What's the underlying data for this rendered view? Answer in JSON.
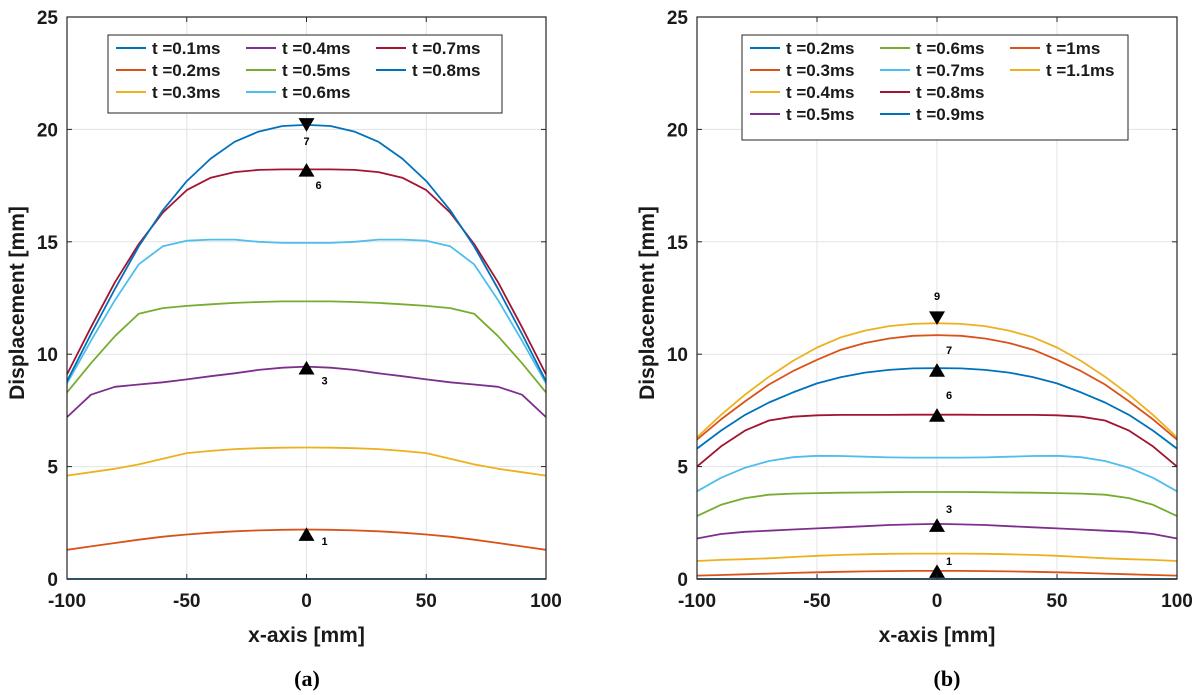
{
  "chart_data": [
    {
      "type": "line",
      "caption": "(a)",
      "xlabel": "x-axis [mm]",
      "ylabel": "Displacement [mm]",
      "xlim": [
        -100,
        100
      ],
      "ylim": [
        0,
        25
      ],
      "xticks": [
        "-100",
        "-50",
        "0",
        "50",
        "100"
      ],
      "yticks": [
        "0",
        "5",
        "10",
        "15",
        "20",
        "25"
      ],
      "grid": true,
      "legend_position": "top",
      "x": [
        -100,
        -90,
        -80,
        -70,
        -60,
        -50,
        -40,
        -30,
        -20,
        -10,
        0,
        10,
        20,
        30,
        40,
        50,
        60,
        70,
        80,
        90,
        100
      ],
      "series": [
        {
          "name": "t =0.1ms",
          "color": "#0072BD",
          "values": [
            0,
            0,
            0,
            0,
            0,
            0,
            0,
            0,
            0,
            0,
            0,
            0,
            0,
            0,
            0,
            0,
            0,
            0,
            0,
            0,
            0
          ]
        },
        {
          "name": "t =0.2ms",
          "color": "#D95319",
          "values": [
            1.3,
            1.45,
            1.6,
            1.75,
            1.88,
            1.98,
            2.06,
            2.12,
            2.16,
            2.19,
            2.2,
            2.19,
            2.16,
            2.12,
            2.06,
            1.98,
            1.88,
            1.75,
            1.6,
            1.45,
            1.3
          ]
        },
        {
          "name": "t =0.3ms",
          "color": "#EDB120",
          "values": [
            4.6,
            4.75,
            4.9,
            5.1,
            5.35,
            5.6,
            5.7,
            5.78,
            5.82,
            5.84,
            5.85,
            5.84,
            5.82,
            5.78,
            5.7,
            5.6,
            5.35,
            5.1,
            4.9,
            4.75,
            4.6
          ]
        },
        {
          "name": "t =0.4ms",
          "color": "#7E2F8E",
          "values": [
            7.2,
            8.2,
            8.55,
            8.65,
            8.75,
            8.88,
            9.02,
            9.15,
            9.3,
            9.4,
            9.45,
            9.4,
            9.3,
            9.15,
            9.02,
            8.88,
            8.75,
            8.65,
            8.55,
            8.2,
            7.2
          ]
        },
        {
          "name": "t =0.5ms",
          "color": "#77AC30",
          "values": [
            8.3,
            9.6,
            10.8,
            11.8,
            12.05,
            12.15,
            12.22,
            12.28,
            12.32,
            12.35,
            12.35,
            12.35,
            12.32,
            12.28,
            12.22,
            12.15,
            12.05,
            11.8,
            10.8,
            9.6,
            8.3
          ]
        },
        {
          "name": "t =0.6ms",
          "color": "#4DBEEE",
          "values": [
            8.7,
            10.6,
            12.4,
            14.0,
            14.8,
            15.05,
            15.1,
            15.1,
            15.0,
            14.95,
            14.95,
            14.95,
            15.0,
            15.1,
            15.1,
            15.05,
            14.8,
            14.0,
            12.4,
            10.6,
            8.7
          ]
        },
        {
          "name": "t =0.7ms",
          "color": "#A2142F",
          "values": [
            9.1,
            11.2,
            13.2,
            14.9,
            16.3,
            17.3,
            17.85,
            18.1,
            18.2,
            18.22,
            18.22,
            18.22,
            18.2,
            18.1,
            17.85,
            17.3,
            16.3,
            14.9,
            13.2,
            11.2,
            9.1
          ]
        },
        {
          "name": "t =0.8ms",
          "color": "#0072BD",
          "values": [
            8.8,
            10.9,
            12.9,
            14.8,
            16.4,
            17.7,
            18.7,
            19.45,
            19.9,
            20.15,
            20.2,
            20.15,
            19.9,
            19.45,
            18.7,
            17.7,
            16.4,
            14.8,
            12.9,
            10.9,
            8.8
          ]
        }
      ],
      "annotations": [
        {
          "label": "1",
          "x": 0,
          "y": 2.0,
          "marker": "up"
        },
        {
          "label": "3",
          "x": 0,
          "y": 9.4,
          "marker": "up"
        },
        {
          "label": "6",
          "x": 0,
          "y": 18.2,
          "marker": "up"
        },
        {
          "label": "7",
          "x": 0,
          "y": 20.2,
          "marker": "down"
        }
      ]
    },
    {
      "type": "line",
      "caption": "(b)",
      "xlabel": "x-axis [mm]",
      "ylabel": "Displacement [mm]",
      "xlim": [
        -100,
        100
      ],
      "ylim": [
        0,
        25
      ],
      "xticks": [
        "-100",
        "-50",
        "0",
        "50",
        "100"
      ],
      "yticks": [
        "0",
        "5",
        "10",
        "15",
        "20",
        "25"
      ],
      "grid": true,
      "legend_position": "top",
      "x": [
        -100,
        -90,
        -80,
        -70,
        -60,
        -50,
        -40,
        -30,
        -20,
        -10,
        0,
        10,
        20,
        30,
        40,
        50,
        60,
        70,
        80,
        90,
        100
      ],
      "series": [
        {
          "name": "t =0.2ms",
          "color": "#0072BD",
          "values": [
            0,
            0,
            0,
            0,
            0,
            0,
            0,
            0,
            0,
            0,
            0,
            0,
            0,
            0,
            0,
            0,
            0,
            0,
            0,
            0,
            0
          ]
        },
        {
          "name": "t =0.3ms",
          "color": "#D95319",
          "values": [
            0.15,
            0.18,
            0.21,
            0.24,
            0.27,
            0.3,
            0.32,
            0.34,
            0.35,
            0.36,
            0.36,
            0.36,
            0.35,
            0.34,
            0.32,
            0.3,
            0.27,
            0.24,
            0.21,
            0.18,
            0.15
          ]
        },
        {
          "name": "t =0.4ms",
          "color": "#EDB120",
          "values": [
            0.8,
            0.85,
            0.88,
            0.92,
            0.98,
            1.03,
            1.07,
            1.1,
            1.12,
            1.13,
            1.13,
            1.13,
            1.12,
            1.1,
            1.07,
            1.03,
            0.98,
            0.92,
            0.88,
            0.85,
            0.8
          ]
        },
        {
          "name": "t =0.5ms",
          "color": "#7E2F8E",
          "values": [
            1.8,
            2.0,
            2.1,
            2.15,
            2.2,
            2.25,
            2.3,
            2.35,
            2.4,
            2.43,
            2.45,
            2.43,
            2.4,
            2.35,
            2.3,
            2.25,
            2.2,
            2.15,
            2.1,
            2.0,
            1.8
          ]
        },
        {
          "name": "t =0.6ms",
          "color": "#77AC30",
          "values": [
            2.8,
            3.3,
            3.6,
            3.75,
            3.8,
            3.82,
            3.84,
            3.85,
            3.86,
            3.87,
            3.87,
            3.87,
            3.86,
            3.85,
            3.84,
            3.82,
            3.8,
            3.75,
            3.6,
            3.3,
            2.8
          ]
        },
        {
          "name": "t =0.7ms",
          "color": "#4DBEEE",
          "values": [
            3.9,
            4.5,
            4.95,
            5.25,
            5.42,
            5.48,
            5.47,
            5.44,
            5.41,
            5.4,
            5.4,
            5.4,
            5.41,
            5.44,
            5.47,
            5.48,
            5.42,
            5.25,
            4.95,
            4.5,
            3.9
          ]
        },
        {
          "name": "t =0.8ms",
          "color": "#A2142F",
          "values": [
            5.0,
            5.9,
            6.6,
            7.05,
            7.22,
            7.28,
            7.3,
            7.3,
            7.3,
            7.31,
            7.31,
            7.31,
            7.3,
            7.3,
            7.3,
            7.28,
            7.22,
            7.05,
            6.6,
            5.9,
            5.0
          ]
        },
        {
          "name": "t =0.9ms",
          "color": "#0072BD",
          "values": [
            5.8,
            6.6,
            7.3,
            7.85,
            8.3,
            8.7,
            8.98,
            9.18,
            9.3,
            9.37,
            9.38,
            9.37,
            9.3,
            9.18,
            8.98,
            8.7,
            8.3,
            7.85,
            7.3,
            6.6,
            5.8
          ]
        },
        {
          "name": "t =1ms",
          "color": "#D95319",
          "values": [
            6.2,
            7.1,
            7.9,
            8.65,
            9.25,
            9.75,
            10.2,
            10.5,
            10.7,
            10.82,
            10.85,
            10.82,
            10.7,
            10.5,
            10.2,
            9.75,
            9.25,
            8.65,
            7.9,
            7.1,
            6.2
          ]
        },
        {
          "name": "t =1.1ms",
          "color": "#EDB120",
          "values": [
            6.3,
            7.3,
            8.2,
            9.0,
            9.7,
            10.3,
            10.75,
            11.05,
            11.25,
            11.35,
            11.38,
            11.35,
            11.25,
            11.05,
            10.75,
            10.3,
            9.7,
            9.0,
            8.2,
            7.3,
            6.3
          ]
        }
      ],
      "annotations": [
        {
          "label": "1",
          "x": 0,
          "y": 0.35,
          "marker": "up"
        },
        {
          "label": "3",
          "x": 0,
          "y": 2.4,
          "marker": "up"
        },
        {
          "label": "6",
          "x": 0,
          "y": 7.3,
          "marker": "up"
        },
        {
          "label": "7",
          "x": 0,
          "y": 9.3,
          "marker": "up"
        },
        {
          "label": "9",
          "x": 0,
          "y": 11.6,
          "marker": "down"
        }
      ]
    }
  ]
}
